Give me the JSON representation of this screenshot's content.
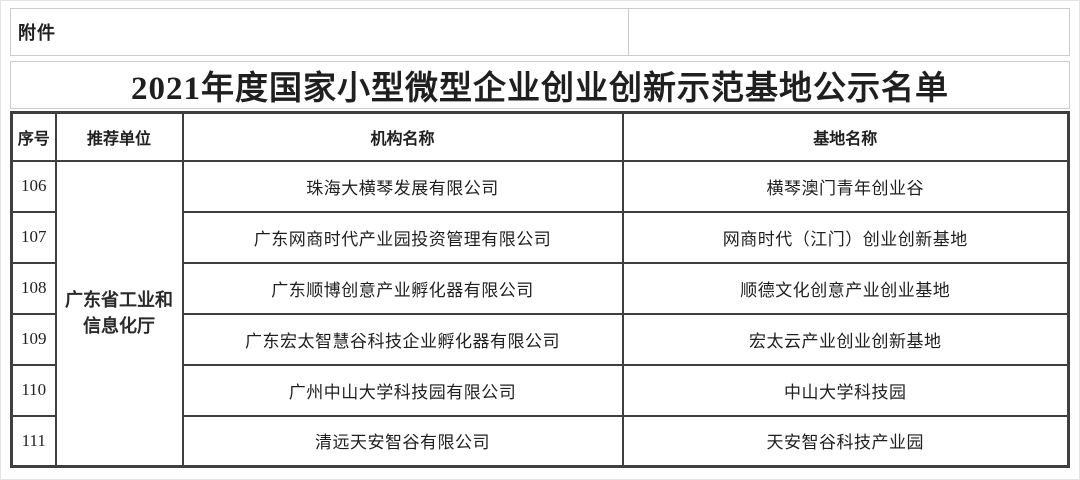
{
  "page": {
    "attachment_label": "附件",
    "title": "2021年度国家小型微型企业创业创新示范基地公示名单"
  },
  "table": {
    "headers": {
      "no": "序号",
      "recommender": "推荐单位",
      "org": "机构名称",
      "base": "基地名称"
    },
    "recommending_unit": "广东省工业和信息化厅",
    "rows": [
      {
        "no": "106",
        "org": "珠海大横琴发展有限公司",
        "base": "横琴澳门青年创业谷"
      },
      {
        "no": "107",
        "org": "广东网商时代产业园投资管理有限公司",
        "base": "网商时代（江门）创业创新基地"
      },
      {
        "no": "108",
        "org": "广东顺博创意产业孵化器有限公司",
        "base": "顺德文化创意产业创业基地"
      },
      {
        "no": "109",
        "org": "广东宏太智慧谷科技企业孵化器有限公司",
        "base": "宏太云产业创业创新基地"
      },
      {
        "no": "110",
        "org": "广州中山大学科技园有限公司",
        "base": "中山大学科技园"
      },
      {
        "no": "111",
        "org": "清远天安智谷有限公司",
        "base": "天安智谷科技产业园"
      }
    ],
    "colors": {
      "table_border": "#3f3f3f",
      "light_border": "#cccccc",
      "text": "#1f1f1f"
    }
  }
}
